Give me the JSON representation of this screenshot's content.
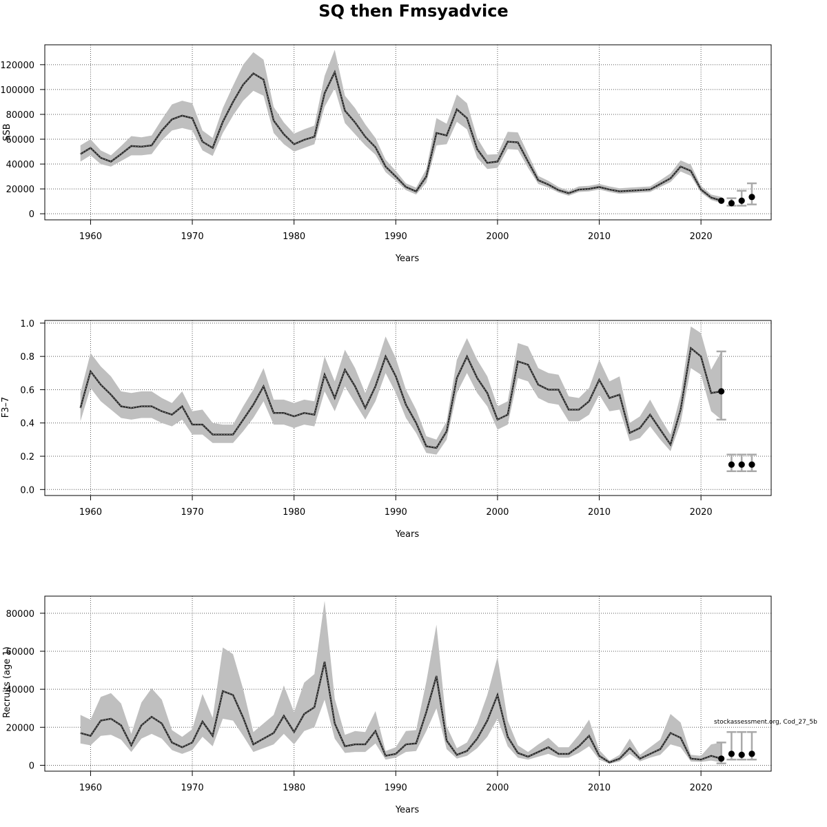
{
  "title": "SQ then Fmsyadvice",
  "credit": "stockassessment.org, Cod_27_5b",
  "chart_data": [
    {
      "type": "line",
      "id": "ssb",
      "ylabel": "SSB",
      "xlabel": "Years",
      "xlim": [
        1955.5,
        2026.9
      ],
      "ylim": [
        -4900,
        136000
      ],
      "xticks": [
        1960,
        1970,
        1980,
        1990,
        2000,
        2010,
        2020
      ],
      "yticks": [
        0,
        20000,
        40000,
        60000,
        80000,
        100000,
        120000
      ],
      "grid": true,
      "x": [
        1959,
        1960,
        1961,
        1962,
        1963,
        1964,
        1965,
        1966,
        1967,
        1968,
        1969,
        1970,
        1971,
        1972,
        1973,
        1974,
        1975,
        1976,
        1977,
        1978,
        1979,
        1980,
        1981,
        1982,
        1983,
        1984,
        1985,
        1986,
        1987,
        1988,
        1989,
        1990,
        1991,
        1992,
        1993,
        1994,
        1995,
        1996,
        1997,
        1998,
        1999,
        2000,
        2001,
        2002,
        2003,
        2004,
        2005,
        2006,
        2007,
        2008,
        2009,
        2010,
        2011,
        2012,
        2013,
        2014,
        2015,
        2016,
        2017,
        2018,
        2019,
        2020,
        2021,
        2022
      ],
      "estimate": [
        48000,
        53000,
        45000,
        42000,
        48000,
        54500,
        54000,
        55000,
        67000,
        76000,
        79000,
        77000,
        58000,
        53000,
        74000,
        90000,
        104000,
        113000,
        108000,
        75000,
        64000,
        56000,
        59500,
        62000,
        97000,
        114000,
        83000,
        73500,
        62000,
        53500,
        38000,
        30000,
        21500,
        18000,
        30000,
        65000,
        63000,
        84000,
        77000,
        52000,
        41000,
        42000,
        58000,
        57500,
        42000,
        27000,
        23500,
        19000,
        16500,
        19500,
        20000,
        21500,
        19500,
        18000,
        18500,
        19000,
        19500,
        24000,
        28500,
        38000,
        34500,
        19500,
        13000,
        10500
      ],
      "lower": [
        42000,
        47000,
        40000,
        38000,
        42500,
        47000,
        47000,
        48000,
        59000,
        67000,
        69000,
        67000,
        51000,
        46500,
        65000,
        79000,
        91000,
        99000,
        95000,
        65000,
        56000,
        50000,
        53000,
        56000,
        86000,
        101000,
        73000,
        64000,
        55000,
        47500,
        33500,
        26500,
        19000,
        15500,
        25000,
        55000,
        56000,
        74000,
        68000,
        45000,
        36000,
        37000,
        52000,
        51500,
        37000,
        24000,
        21000,
        17000,
        14500,
        17500,
        18000,
        19500,
        17500,
        16000,
        16500,
        17000,
        17500,
        21500,
        25500,
        34000,
        30500,
        17000,
        11000,
        8500
      ],
      "upper": [
        55000,
        60000,
        51000,
        47000,
        54500,
        62500,
        61500,
        63000,
        76000,
        88000,
        91000,
        89000,
        67000,
        61000,
        85000,
        103000,
        120000,
        130000,
        124000,
        86000,
        73500,
        64500,
        68000,
        71000,
        111000,
        132000,
        95000,
        85000,
        72000,
        61000,
        43500,
        34500,
        24500,
        21000,
        36000,
        77000,
        72500,
        96000,
        89000,
        61000,
        47500,
        48000,
        66000,
        65500,
        48000,
        30500,
        26500,
        21500,
        18500,
        22000,
        22500,
        24000,
        22000,
        20500,
        21000,
        21500,
        22000,
        27000,
        32500,
        43000,
        39500,
        22500,
        15500,
        13500
      ],
      "forecast": {
        "x": [
          2022,
          2023,
          2024,
          2025
        ],
        "median": [
          10500,
          8500,
          10500,
          13500
        ],
        "lower": [
          null,
          6500,
          6500,
          7500
        ],
        "upper": [
          null,
          12500,
          18500,
          24500
        ]
      }
    },
    {
      "type": "line",
      "id": "fbar",
      "ylabel": "F3–7",
      "xlabel": "Years",
      "xlim": [
        1955.5,
        2026.9
      ],
      "ylim": [
        -0.036,
        1.016
      ],
      "xticks": [
        1960,
        1970,
        1980,
        1990,
        2000,
        2010,
        2020
      ],
      "yticks": [
        0.0,
        0.2,
        0.4,
        0.6,
        0.8,
        1.0
      ],
      "ytick_labels": [
        "0.0",
        "0.2",
        "0.4",
        "0.6",
        "0.8",
        "1.0"
      ],
      "grid": true,
      "x": [
        1959,
        1960,
        1961,
        1962,
        1963,
        1964,
        1965,
        1966,
        1967,
        1968,
        1969,
        1970,
        1971,
        1972,
        1973,
        1974,
        1975,
        1976,
        1977,
        1978,
        1979,
        1980,
        1981,
        1982,
        1983,
        1984,
        1985,
        1986,
        1987,
        1988,
        1989,
        1990,
        1991,
        1992,
        1993,
        1994,
        1995,
        1996,
        1997,
        1998,
        1999,
        2000,
        2001,
        2002,
        2003,
        2004,
        2005,
        2006,
        2007,
        2008,
        2009,
        2010,
        2011,
        2012,
        2013,
        2014,
        2015,
        2016,
        2017,
        2018,
        2019,
        2020,
        2021,
        2022
      ],
      "estimate": [
        0.49,
        0.71,
        0.63,
        0.57,
        0.5,
        0.49,
        0.5,
        0.5,
        0.47,
        0.45,
        0.5,
        0.39,
        0.39,
        0.33,
        0.33,
        0.33,
        0.42,
        0.51,
        0.62,
        0.46,
        0.46,
        0.44,
        0.46,
        0.45,
        0.69,
        0.55,
        0.72,
        0.62,
        0.49,
        0.62,
        0.8,
        0.68,
        0.51,
        0.4,
        0.26,
        0.25,
        0.35,
        0.67,
        0.8,
        0.67,
        0.58,
        0.42,
        0.45,
        0.77,
        0.75,
        0.63,
        0.6,
        0.6,
        0.48,
        0.48,
        0.53,
        0.66,
        0.55,
        0.57,
        0.34,
        0.37,
        0.45,
        0.36,
        0.27,
        0.48,
        0.85,
        0.8,
        0.58,
        0.59
      ],
      "lower": [
        0.41,
        0.61,
        0.53,
        0.48,
        0.43,
        0.42,
        0.43,
        0.43,
        0.4,
        0.38,
        0.42,
        0.33,
        0.33,
        0.28,
        0.28,
        0.28,
        0.35,
        0.43,
        0.53,
        0.39,
        0.39,
        0.37,
        0.39,
        0.38,
        0.59,
        0.47,
        0.62,
        0.52,
        0.42,
        0.53,
        0.7,
        0.58,
        0.43,
        0.34,
        0.22,
        0.21,
        0.3,
        0.58,
        0.7,
        0.58,
        0.5,
        0.36,
        0.39,
        0.67,
        0.65,
        0.55,
        0.52,
        0.51,
        0.41,
        0.41,
        0.45,
        0.57,
        0.47,
        0.48,
        0.29,
        0.31,
        0.38,
        0.3,
        0.23,
        0.4,
        0.73,
        0.69,
        0.47,
        0.42
      ],
      "upper": [
        0.58,
        0.82,
        0.74,
        0.68,
        0.59,
        0.58,
        0.59,
        0.59,
        0.55,
        0.52,
        0.59,
        0.47,
        0.48,
        0.4,
        0.39,
        0.39,
        0.5,
        0.6,
        0.73,
        0.54,
        0.54,
        0.52,
        0.54,
        0.53,
        0.8,
        0.65,
        0.84,
        0.73,
        0.58,
        0.73,
        0.92,
        0.79,
        0.6,
        0.48,
        0.32,
        0.3,
        0.41,
        0.78,
        0.91,
        0.78,
        0.68,
        0.5,
        0.53,
        0.88,
        0.86,
        0.73,
        0.7,
        0.69,
        0.56,
        0.55,
        0.61,
        0.78,
        0.65,
        0.68,
        0.4,
        0.44,
        0.54,
        0.43,
        0.33,
        0.57,
        0.98,
        0.94,
        0.72,
        0.83
      ],
      "forecast": {
        "x": [
          2022,
          2023,
          2024,
          2025
        ],
        "median": [
          0.59,
          0.15,
          0.15,
          0.15
        ],
        "lower": [
          0.42,
          0.11,
          0.11,
          0.11
        ],
        "upper": [
          0.83,
          0.21,
          0.21,
          0.21
        ]
      }
    },
    {
      "type": "line",
      "id": "recruits",
      "ylabel": "Recruits (age 1)",
      "xlabel": "Years",
      "xlim": [
        1955.5,
        2026.9
      ],
      "ylim": [
        -3100,
        89000
      ],
      "xticks": [
        1960,
        1970,
        1980,
        1990,
        2000,
        2010,
        2020
      ],
      "yticks": [
        0,
        20000,
        40000,
        60000,
        80000
      ],
      "grid": true,
      "x": [
        1959,
        1960,
        1961,
        1962,
        1963,
        1964,
        1965,
        1966,
        1967,
        1968,
        1969,
        1970,
        1971,
        1972,
        1973,
        1974,
        1975,
        1976,
        1977,
        1978,
        1979,
        1980,
        1981,
        1982,
        1983,
        1984,
        1985,
        1986,
        1987,
        1988,
        1989,
        1990,
        1991,
        1992,
        1993,
        1994,
        1995,
        1996,
        1997,
        1998,
        1999,
        2000,
        2001,
        2002,
        2003,
        2004,
        2005,
        2006,
        2007,
        2008,
        2009,
        2010,
        2011,
        2012,
        2013,
        2014,
        2015,
        2016,
        2017,
        2018,
        2019,
        2020,
        2021,
        2022
      ],
      "estimate": [
        17000,
        15500,
        23500,
        24500,
        21000,
        10500,
        21000,
        25500,
        22000,
        12000,
        9500,
        12000,
        23000,
        15500,
        39000,
        37000,
        25000,
        11000,
        14000,
        17000,
        26000,
        17500,
        27000,
        30500,
        54500,
        22000,
        10000,
        11000,
        11000,
        18000,
        5000,
        6000,
        11000,
        11500,
        28000,
        47000,
        13000,
        5500,
        7500,
        14000,
        23500,
        37000,
        15000,
        6500,
        4500,
        7000,
        9500,
        6000,
        6000,
        10000,
        15500,
        5000,
        1500,
        3500,
        9000,
        3500,
        6000,
        8500,
        17000,
        14500,
        3500,
        3000,
        5000,
        3500
      ],
      "lower": [
        11500,
        10500,
        15500,
        16000,
        13500,
        7000,
        14000,
        16500,
        14000,
        8000,
        6000,
        8000,
        15000,
        10000,
        24500,
        23500,
        15500,
        7000,
        9000,
        11000,
        16500,
        11000,
        18000,
        20000,
        34500,
        14000,
        6500,
        7000,
        7000,
        11500,
        3000,
        4000,
        7000,
        7500,
        18000,
        30000,
        8500,
        3500,
        5000,
        9000,
        15000,
        24500,
        10000,
        4000,
        3000,
        4500,
        6000,
        4000,
        4000,
        6500,
        10000,
        3000,
        800,
        2000,
        6000,
        2000,
        4000,
        5500,
        11000,
        9500,
        2000,
        1800,
        2500,
        1500
      ],
      "upper": [
        26500,
        24000,
        36000,
        38000,
        32500,
        16500,
        33000,
        40500,
        34500,
        18500,
        15000,
        19000,
        37500,
        25000,
        62000,
        58500,
        40000,
        17500,
        22000,
        26500,
        42000,
        28000,
        43500,
        48000,
        86500,
        35000,
        16000,
        18000,
        17500,
        28500,
        7500,
        9500,
        18000,
        18500,
        44000,
        74000,
        20500,
        9000,
        12000,
        22000,
        37000,
        57000,
        23500,
        10500,
        7000,
        11000,
        14500,
        9500,
        9500,
        16000,
        24000,
        8000,
        2500,
        5500,
        14000,
        5500,
        9500,
        13500,
        27000,
        22500,
        5500,
        5000,
        11000,
        12000
      ],
      "forecast": {
        "x": [
          2022,
          2023,
          2024,
          2025
        ],
        "median": [
          3500,
          6000,
          5500,
          6000
        ],
        "lower": [
          1000,
          3000,
          3000,
          3000
        ],
        "upper": [
          12000,
          17500,
          17500,
          17500
        ]
      }
    }
  ]
}
